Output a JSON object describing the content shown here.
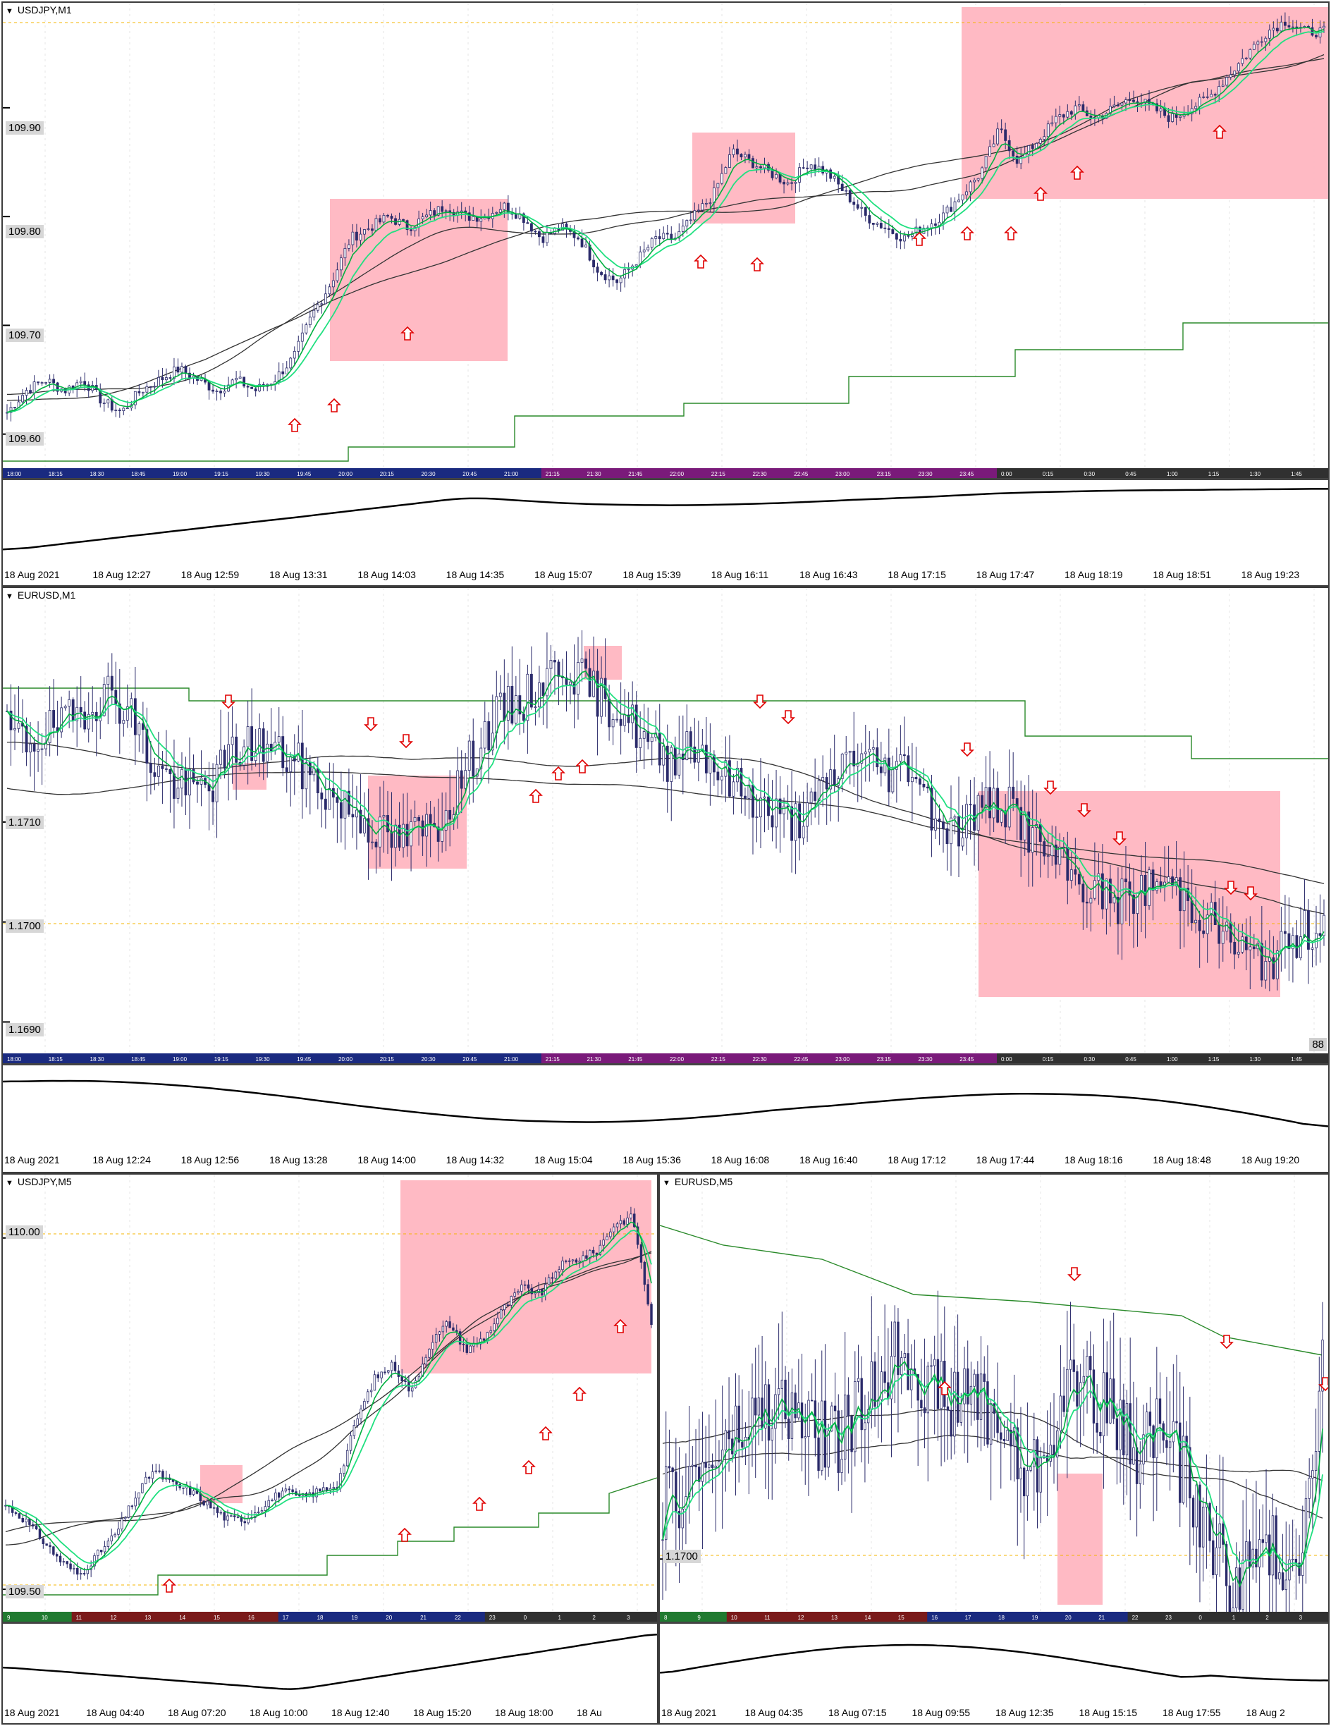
{
  "panels": {
    "p1": {
      "title": "USDJPY,M1",
      "price_labels": [
        "109.90",
        "109.80",
        "109.70",
        "109.60"
      ],
      "time_labels": [
        "18 Aug 2021",
        "18 Aug 12:27",
        "18 Aug 12:59",
        "18 Aug 13:31",
        "18 Aug 14:03",
        "18 Aug 14:35",
        "18 Aug 15:07",
        "18 Aug 15:39",
        "18 Aug 16:11",
        "18 Aug 16:43",
        "18 Aug 17:15",
        "18 Aug 17:47",
        "18 Aug 18:19",
        "18 Aug 18:51",
        "18 Aug 19:23"
      ],
      "strip_labels": [
        "18:00",
        "18:15",
        "18:30",
        "18:45",
        "19:00",
        "19:15",
        "19:30",
        "19:45",
        "20:00",
        "20:15",
        "20:30",
        "20:45",
        "21:00",
        "21:15",
        "21:30",
        "21:45",
        "22:00",
        "22:15",
        "22:30",
        "22:45",
        "23:00",
        "23:15",
        "23:30",
        "23:45",
        "0:00",
        "0:15",
        "0:30",
        "0:45",
        "1:00",
        "1:15",
        "1:30",
        "1:45"
      ]
    },
    "p2": {
      "title": "EURUSD,M1",
      "price_labels": [
        "1.1710",
        "1.1700",
        "1.1690"
      ],
      "badge": "88",
      "time_labels": [
        "18 Aug 2021",
        "18 Aug 12:24",
        "18 Aug 12:56",
        "18 Aug 13:28",
        "18 Aug 14:00",
        "18 Aug 14:32",
        "18 Aug 15:04",
        "18 Aug 15:36",
        "18 Aug 16:08",
        "18 Aug 16:40",
        "18 Aug 17:12",
        "18 Aug 17:44",
        "18 Aug 18:16",
        "18 Aug 18:48",
        "18 Aug 19:20"
      ],
      "strip_labels": [
        "18:00",
        "18:15",
        "18:30",
        "18:45",
        "19:00",
        "19:15",
        "19:30",
        "19:45",
        "20:00",
        "20:15",
        "20:30",
        "20:45",
        "21:00",
        "21:15",
        "21:30",
        "21:45",
        "22:00",
        "22:15",
        "22:30",
        "22:45",
        "23:00",
        "23:15",
        "23:30",
        "23:45",
        "0:00",
        "0:15",
        "0:30",
        "0:45",
        "1:00",
        "1:15",
        "1:30",
        "1:45"
      ]
    },
    "p3": {
      "title": "USDJPY,M5",
      "price_labels": [
        "110.00",
        "109.50"
      ],
      "time_labels": [
        "18 Aug 2021",
        "18 Aug 04:40",
        "18 Aug 07:20",
        "18 Aug 10:00",
        "18 Aug 12:40",
        "18 Aug 15:20",
        "18 Aug 18:00",
        "18 Au"
      ],
      "strip_labels": [
        "9",
        "10",
        "11",
        "12",
        "13",
        "14",
        "15",
        "16",
        "17",
        "18",
        "19",
        "20",
        "21",
        "22",
        "23",
        "0",
        "1",
        "2",
        "3"
      ]
    },
    "p4": {
      "title": "EURUSD,M5",
      "price_labels": [
        "1.1700"
      ],
      "time_labels": [
        "18 Aug 2021",
        "18 Aug 04:35",
        "18 Aug 07:15",
        "18 Aug 09:55",
        "18 Aug 12:35",
        "18 Aug 15:15",
        "18 Aug 17:55",
        "18 Aug 2"
      ],
      "strip_labels": [
        "8",
        "9",
        "10",
        "11",
        "12",
        "13",
        "14",
        "15",
        "16",
        "17",
        "18",
        "19",
        "20",
        "21",
        "22",
        "23",
        "0",
        "1",
        "2",
        "3"
      ]
    }
  },
  "colors": {
    "candle": "#2b2b6b",
    "ma_fast": "#00b040",
    "ma_slow": "#20e080",
    "ma_long": "#333333",
    "step_line": "#2a8a2a",
    "highlight": "#ffb6c1",
    "arrow": "#e00000",
    "level_line": "#f5b400",
    "osc": "#000000"
  },
  "chart_data": [
    {
      "type": "line",
      "title": "USDJPY,M1",
      "ylim": [
        109.57,
        109.99
      ],
      "y_ticks": [
        109.6,
        109.7,
        109.8,
        109.9
      ],
      "close_path": [
        109.62,
        109.64,
        109.65,
        109.64,
        109.65,
        109.63,
        109.62,
        109.64,
        109.65,
        109.66,
        109.65,
        109.64,
        109.65,
        109.64,
        109.65,
        109.67,
        109.71,
        109.74,
        109.78,
        109.79,
        109.8,
        109.79,
        109.8,
        109.81,
        109.8,
        109.8,
        109.81,
        109.8,
        109.78,
        109.79,
        109.78,
        109.75,
        109.74,
        109.76,
        109.78,
        109.78,
        109.8,
        109.82,
        109.86,
        109.85,
        109.84,
        109.83,
        109.85,
        109.84,
        109.82,
        109.8,
        109.79,
        109.78,
        109.79,
        109.8,
        109.82,
        109.84,
        109.88,
        109.85,
        109.87,
        109.89,
        109.9,
        109.89,
        109.9,
        109.91,
        109.9,
        109.89,
        109.9,
        109.91,
        109.93,
        109.95,
        109.97,
        109.98,
        109.97,
        109.97
      ],
      "up_arrows": 14,
      "highlight_boxes": 3
    },
    {
      "type": "line",
      "title": "EURUSD,M1",
      "ylim": [
        1.1687,
        1.1732
      ],
      "y_ticks": [
        1.169,
        1.17,
        1.171
      ],
      "close_path": [
        1.1719,
        1.1718,
        1.1719,
        1.172,
        1.1722,
        1.1723,
        1.1721,
        1.1716,
        1.1714,
        1.1713,
        1.1714,
        1.1717,
        1.1718,
        1.1717,
        1.1716,
        1.1714,
        1.1712,
        1.1711,
        1.1709,
        1.1708,
        1.1709,
        1.171,
        1.1714,
        1.1718,
        1.1721,
        1.1722,
        1.1724,
        1.1726,
        1.1724,
        1.1722,
        1.1721,
        1.1718,
        1.1716,
        1.1718,
        1.1717,
        1.1714,
        1.1713,
        1.1711,
        1.171,
        1.1711,
        1.1714,
        1.1717,
        1.1716,
        1.1715,
        1.1716,
        1.1711,
        1.1709,
        1.1711,
        1.1712,
        1.1711,
        1.1708,
        1.1706,
        1.1704,
        1.1703,
        1.1702,
        1.1703,
        1.1704,
        1.1703,
        1.1701,
        1.1699,
        1.1697,
        1.1696,
        1.1697,
        1.1699,
        1.17
      ],
      "down_arrows": 13,
      "up_arrows": 4,
      "highlight_boxes": 4
    },
    {
      "type": "line",
      "title": "USDJPY,M5",
      "ylim": [
        109.47,
        110.05
      ],
      "y_ticks": [
        109.5,
        110.0
      ],
      "close_path": [
        109.62,
        109.6,
        109.57,
        109.54,
        109.52,
        109.55,
        109.58,
        109.63,
        109.67,
        109.65,
        109.64,
        109.62,
        109.6,
        109.6,
        109.62,
        109.64,
        109.63,
        109.64,
        109.65,
        109.74,
        109.8,
        109.82,
        109.78,
        109.85,
        109.88,
        109.84,
        109.86,
        109.9,
        109.93,
        109.92,
        109.96,
        109.97,
        109.98,
        110.02,
        110.03,
        109.88
      ],
      "up_arrows": 9,
      "highlight_boxes": 2
    },
    {
      "type": "line",
      "title": "EURUSD,M5",
      "ylim": [
        1.1694,
        1.174
      ],
      "y_ticks": [
        1.17
      ],
      "close_path": [
        1.1706,
        1.1708,
        1.171,
        1.1712,
        1.1714,
        1.1716,
        1.1718,
        1.1717,
        1.1715,
        1.1714,
        1.1715,
        1.1718,
        1.1722,
        1.1725,
        1.1722,
        1.1719,
        1.1718,
        1.172,
        1.1717,
        1.1713,
        1.1709,
        1.1714,
        1.1719,
        1.1722,
        1.1718,
        1.1715,
        1.1713,
        1.1716,
        1.1712,
        1.1707,
        1.1702,
        1.1697,
        1.1699,
        1.1701,
        1.17,
        1.1703,
        1.1725
      ],
      "down_arrows": 3,
      "up_arrows": 1,
      "highlight_boxes": 1
    }
  ]
}
